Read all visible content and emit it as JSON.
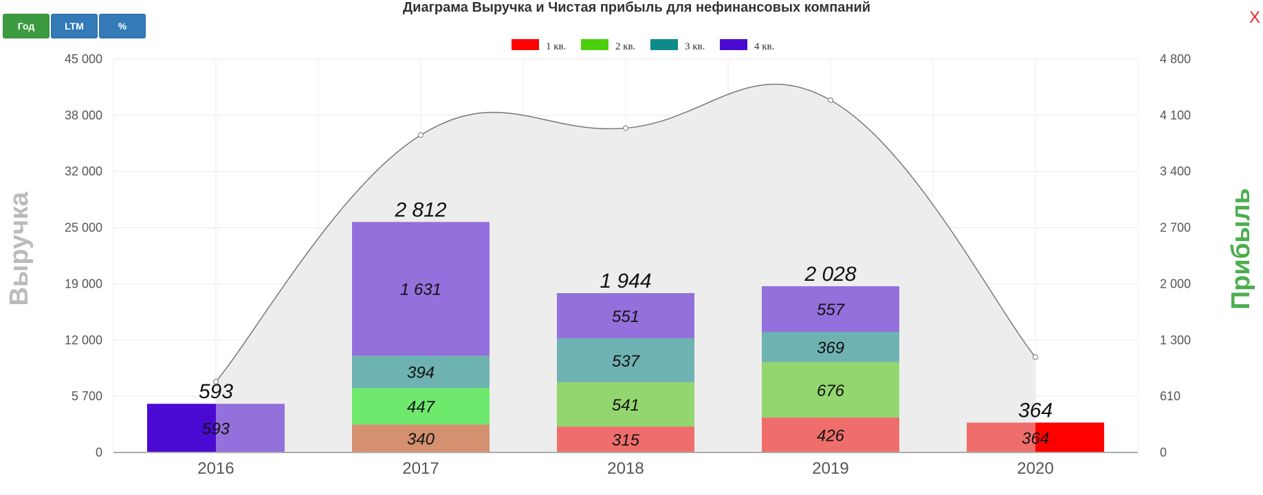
{
  "title": "Диаграма Выручка и Чистая прибыль для нефинансовых компаний",
  "close_label": "X",
  "buttons": [
    {
      "label": "Год",
      "color": "#3c9b41",
      "active": true
    },
    {
      "label": "LTM",
      "color": "#337ab7",
      "active": false
    },
    {
      "label": "%",
      "color": "#337ab7",
      "active": false
    }
  ],
  "chart_data": {
    "type": "bar",
    "stacked": true,
    "categories": [
      "2016",
      "2017",
      "2018",
      "2019",
      "2020"
    ],
    "ylabel": "Выручка",
    "ylabel_color": "#bbbbbb",
    "y2label": "Прибыль",
    "y2label_color": "#4cae4f",
    "ylim": [
      0,
      45000
    ],
    "y_ticks": [
      "0",
      "5 700",
      "12 000",
      "19 000",
      "25 000",
      "32 000",
      "38 000",
      "45 000"
    ],
    "y2lim": [
      0,
      4800
    ],
    "y2_ticks": [
      "0",
      "610",
      "1 300",
      "2 000",
      "2 700",
      "3 400",
      "4 100",
      "4 800"
    ],
    "legend_position": "top-center",
    "grid": true,
    "legend": [
      {
        "name": "1 кв.",
        "color": "#ff0000"
      },
      {
        "name": "2 кв.",
        "color": "#4ccf0c"
      },
      {
        "name": "3 кв.",
        "color": "#0e8a8a"
      },
      {
        "name": "4 кв.",
        "color": "#4b0ad2"
      }
    ],
    "bars": [
      {
        "category": "2016",
        "total": "593",
        "segments": [
          {
            "q": 4,
            "value": 593,
            "label": "593",
            "color": "#9370db"
          }
        ],
        "partial_highlight": {
          "q": 4,
          "color": "#4b0ad2"
        }
      },
      {
        "category": "2017",
        "total": "2 812",
        "segments": [
          {
            "q": 1,
            "value": 340,
            "label": "340",
            "color": "#d4906f"
          },
          {
            "q": 2,
            "value": 447,
            "label": "447",
            "color": "#6ee96e"
          },
          {
            "q": 3,
            "value": 394,
            "label": "394",
            "color": "#6fb2b2"
          },
          {
            "q": 4,
            "value": 1631,
            "label": "1 631",
            "color": "#9370db"
          }
        ]
      },
      {
        "category": "2018",
        "total": "1 944",
        "segments": [
          {
            "q": 1,
            "value": 315,
            "label": "315",
            "color": "#ef6e6c"
          },
          {
            "q": 2,
            "value": 541,
            "label": "541",
            "color": "#93d66f"
          },
          {
            "q": 3,
            "value": 537,
            "label": "537",
            "color": "#6fb2b2"
          },
          {
            "q": 4,
            "value": 551,
            "label": "551",
            "color": "#9370db"
          }
        ]
      },
      {
        "category": "2019",
        "total": "2 028",
        "segments": [
          {
            "q": 1,
            "value": 426,
            "label": "426",
            "color": "#ef6e6c"
          },
          {
            "q": 2,
            "value": 676,
            "label": "676",
            "color": "#93d66f"
          },
          {
            "q": 3,
            "value": 369,
            "label": "369",
            "color": "#6fb2b2"
          },
          {
            "q": 4,
            "value": 557,
            "label": "557",
            "color": "#9370db"
          }
        ]
      },
      {
        "category": "2020",
        "total": "364",
        "segments": [
          {
            "q": 1,
            "value": 364,
            "label": "364",
            "color": "#ef6e6c"
          }
        ],
        "partial_highlight": {
          "q": 1,
          "color": "#ff0000"
        }
      }
    ],
    "revenue_series": {
      "values": [
        8100,
        36300,
        37100,
        40300,
        10900
      ],
      "color": "#777777",
      "fill": "#ededed"
    }
  }
}
